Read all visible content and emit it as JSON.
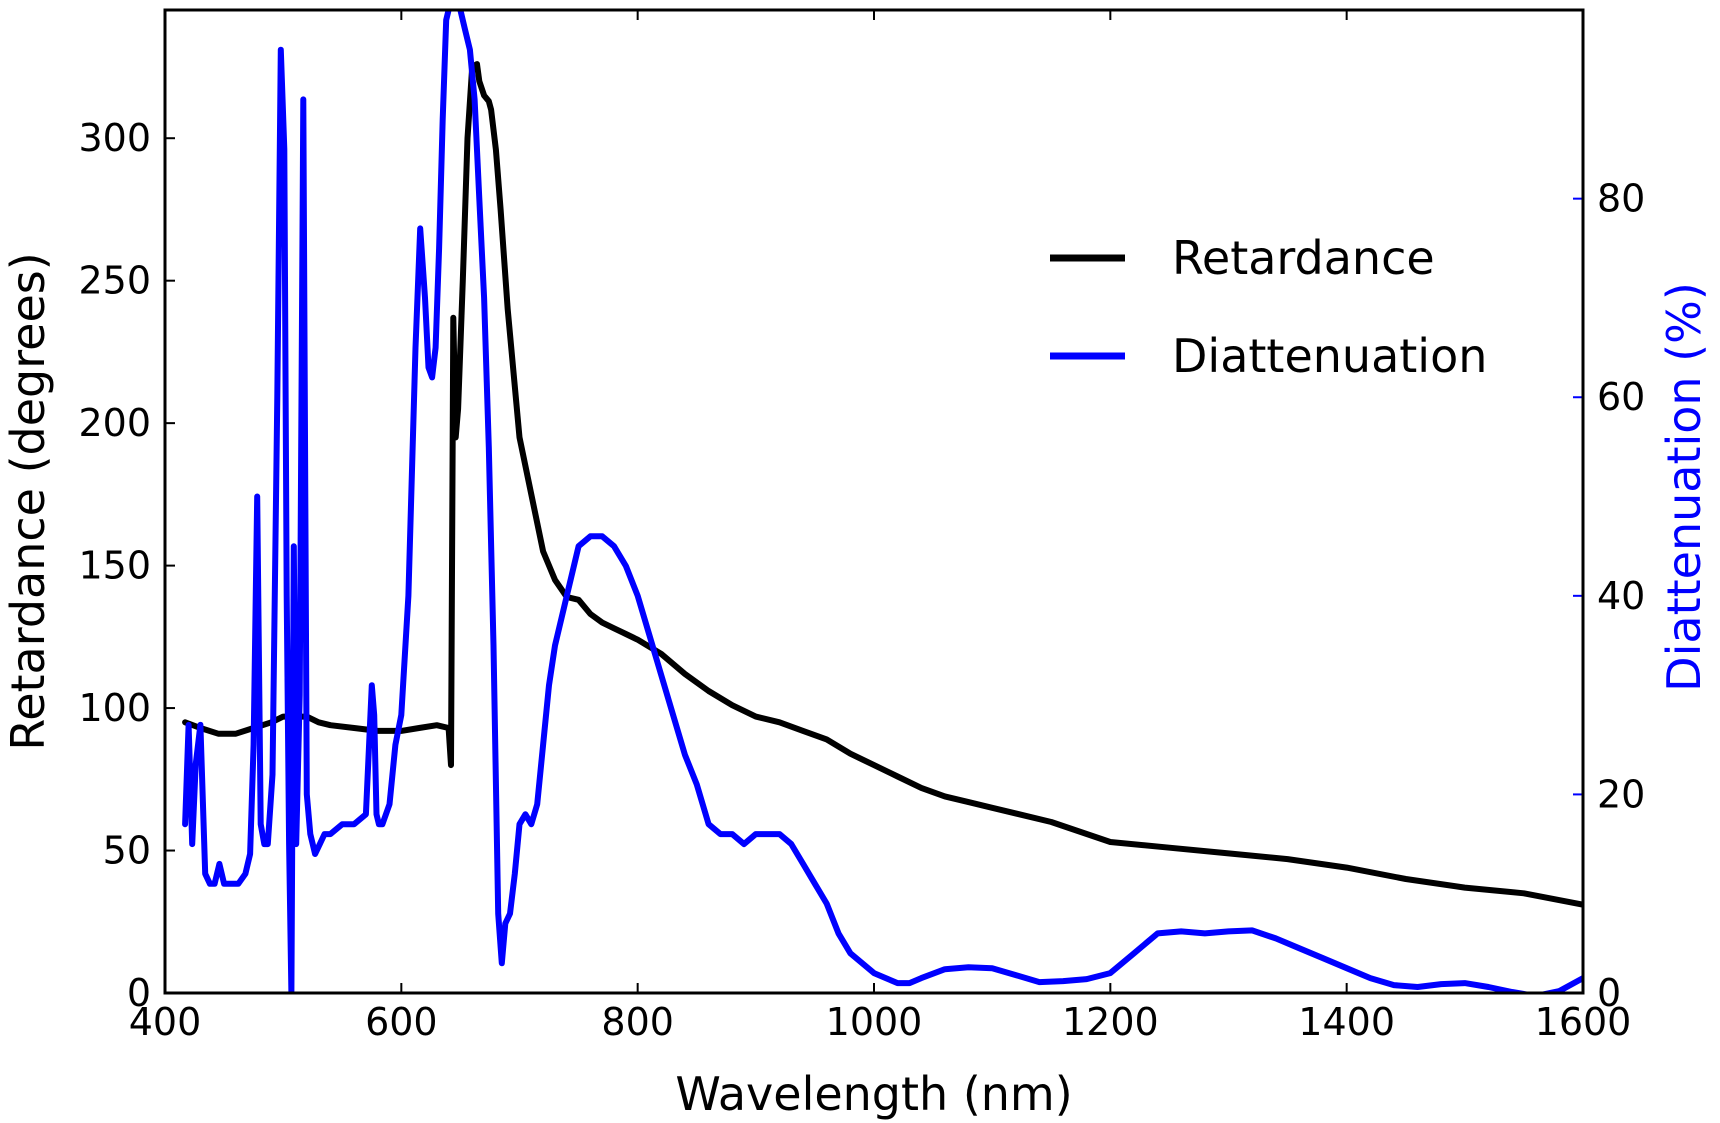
{
  "chart_data": {
    "type": "line",
    "title": "",
    "xlabel": "Wavelength (nm)",
    "ylabel_left": "Retardance (degrees)",
    "ylabel_right": "Diattenuation (%)",
    "xlim": [
      400,
      1600
    ],
    "ylim_left": [
      0,
      345
    ],
    "ylim_right": [
      0,
      99
    ],
    "xticks": [
      400,
      600,
      800,
      1000,
      1200,
      1400,
      1600
    ],
    "yticks_left": [
      0,
      50,
      100,
      150,
      200,
      250,
      300
    ],
    "yticks_right": [
      0,
      20,
      40,
      60,
      80
    ],
    "legend_position": "upper-right",
    "colors": {
      "retardance": "#000000",
      "diattenuation": "#0000ff",
      "right_axis": "#0000ff"
    },
    "series": [
      {
        "name": "Retardance",
        "axis": "left",
        "color": "#000000",
        "x": [
          417,
          430,
          445,
          460,
          475,
          490,
          500,
          510,
          520,
          530,
          540,
          560,
          580,
          600,
          615,
          630,
          640,
          642,
          644,
          646,
          648,
          652,
          656,
          660,
          664,
          666,
          670,
          674,
          676,
          680,
          684,
          690,
          700,
          710,
          720,
          730,
          740,
          750,
          760,
          770,
          780,
          790,
          800,
          820,
          840,
          860,
          880,
          900,
          920,
          940,
          960,
          980,
          1000,
          1020,
          1040,
          1060,
          1080,
          1100,
          1150,
          1200,
          1250,
          1300,
          1350,
          1400,
          1450,
          1500,
          1550,
          1600
        ],
        "y": [
          95,
          93,
          91,
          91,
          93,
          95,
          97,
          97,
          97,
          95,
          94,
          93,
          92,
          92,
          93,
          94,
          93,
          80,
          237,
          195,
          205,
          250,
          300,
          325,
          326,
          320,
          315,
          313,
          310,
          296,
          275,
          240,
          195,
          175,
          155,
          145,
          139,
          138,
          133,
          130,
          128,
          126,
          124,
          119,
          112,
          106,
          101,
          97,
          95,
          92,
          89,
          84,
          80,
          76,
          72,
          69,
          67,
          65,
          60,
          53,
          51,
          49,
          47,
          44,
          40,
          37,
          35,
          31
        ]
      },
      {
        "name": "Diattenuation",
        "axis": "right",
        "color": "#0000ff",
        "x": [
          417,
          420,
          423,
          426,
          430,
          434,
          438,
          442,
          446,
          450,
          456,
          462,
          468,
          472,
          475,
          478,
          481,
          484,
          487,
          491,
          495,
          498,
          501,
          503,
          505,
          507,
          509,
          511,
          514,
          517,
          520,
          523,
          527,
          531,
          535,
          540,
          550,
          560,
          570,
          575,
          577,
          579,
          581,
          584,
          590,
          595,
          600,
          606,
          612,
          616,
          620,
          623,
          626,
          629,
          632,
          635,
          638,
          642,
          646,
          650,
          654,
          658,
          662,
          666,
          670,
          674,
          678,
          682,
          685,
          688,
          692,
          696,
          700,
          705,
          710,
          715,
          720,
          725,
          730,
          740,
          750,
          760,
          765,
          770,
          780,
          790,
          800,
          810,
          820,
          830,
          840,
          850,
          860,
          870,
          880,
          890,
          900,
          910,
          920,
          930,
          940,
          950,
          960,
          970,
          980,
          990,
          1000,
          1010,
          1020,
          1030,
          1040,
          1060,
          1080,
          1100,
          1120,
          1140,
          1160,
          1180,
          1200,
          1220,
          1240,
          1260,
          1280,
          1300,
          1320,
          1340,
          1360,
          1380,
          1400,
          1420,
          1440,
          1460,
          1480,
          1500,
          1520,
          1540,
          1560,
          1580,
          1600
        ],
        "y": [
          17,
          27,
          15,
          23,
          27,
          12,
          11,
          11,
          13,
          11,
          11,
          11,
          12,
          14,
          25,
          50,
          17,
          15,
          15,
          22,
          60,
          95,
          85,
          40,
          15,
          0,
          45,
          15,
          30,
          90,
          20,
          16,
          14,
          15,
          16,
          16,
          17,
          17,
          18,
          31,
          28,
          18,
          17,
          17,
          19,
          25,
          28,
          40,
          65,
          77,
          70,
          63,
          62,
          65,
          75,
          88,
          98,
          100,
          100,
          99,
          97,
          95,
          90,
          80,
          70,
          55,
          35,
          8,
          3,
          7,
          8,
          12,
          17,
          18,
          17,
          19,
          25,
          31,
          35,
          40,
          45,
          46,
          46,
          46,
          45,
          43,
          40,
          36,
          32,
          28,
          24,
          21,
          17,
          16,
          16,
          15,
          16,
          16,
          16,
          15,
          13,
          11,
          9,
          6,
          4,
          3,
          2,
          1.5,
          1,
          1,
          1.5,
          2.4,
          2.6,
          2.5,
          1.8,
          1.1,
          1.2,
          1.4,
          2,
          4,
          6,
          6.2,
          6,
          6.2,
          6.3,
          5.5,
          4.5,
          3.5,
          2.5,
          1.5,
          0.8,
          0.6,
          0.9,
          1,
          0.6,
          0.1,
          -0.3,
          0.2,
          1.5
        ]
      }
    ]
  }
}
